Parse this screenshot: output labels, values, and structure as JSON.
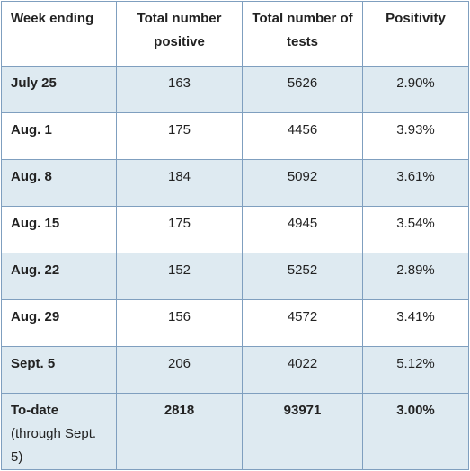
{
  "table": {
    "headers": [
      "Week ending",
      "Total number positive",
      "Total number of tests",
      "Positivity"
    ],
    "rows": [
      {
        "week": "July 25",
        "positive": "163",
        "tests": "5626",
        "positivity": "2.90%"
      },
      {
        "week": "Aug. 1",
        "positive": "175",
        "tests": "4456",
        "positivity": "3.93%"
      },
      {
        "week": "Aug. 8",
        "positive": "184",
        "tests": "5092",
        "positivity": "3.61%"
      },
      {
        "week": "Aug. 15",
        "positive": "175",
        "tests": "4945",
        "positivity": "3.54%"
      },
      {
        "week": "Aug. 22",
        "positive": "152",
        "tests": "5252",
        "positivity": "2.89%"
      },
      {
        "week": "Aug. 29",
        "positive": "156",
        "tests": "4572",
        "positivity": "3.41%"
      },
      {
        "week": "Sept. 5",
        "positive": "206",
        "tests": "4022",
        "positivity": "5.12%"
      }
    ],
    "total": {
      "label": "To-date",
      "label_note": "(through Sept. 5)",
      "positive": "2818",
      "tests": "93971",
      "positivity": "3.00%"
    }
  },
  "colors": {
    "shaded_row": "#deeaf1",
    "border": "#7f9fbf"
  }
}
